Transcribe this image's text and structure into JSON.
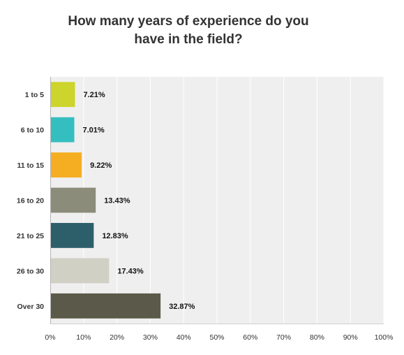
{
  "chart_data": {
    "type": "bar",
    "orientation": "horizontal",
    "title_lines": [
      "How many years of experience do you",
      "have in the field?"
    ],
    "categories": [
      "1 to 5",
      "6 to 10",
      "11 to 15",
      "16 to 20",
      "21 to 25",
      "26 to 30",
      "Over 30"
    ],
    "values": [
      7.21,
      7.01,
      9.22,
      13.43,
      12.83,
      17.43,
      32.87
    ],
    "value_labels": [
      "7.21%",
      "7.01%",
      "9.22%",
      "13.43%",
      "12.83%",
      "17.43%",
      "32.87%"
    ],
    "colors": [
      "#cdd42b",
      "#35bec0",
      "#f5ae22",
      "#8b8c7a",
      "#2d5f6b",
      "#d1d0c4",
      "#5b5949"
    ],
    "xlim": [
      0,
      100
    ],
    "x_ticks": [
      "0%",
      "10%",
      "20%",
      "30%",
      "40%",
      "50%",
      "60%",
      "70%",
      "80%",
      "90%",
      "100%"
    ],
    "grid": true,
    "plot_background": "#efefef",
    "grid_color": "#ffffff"
  }
}
